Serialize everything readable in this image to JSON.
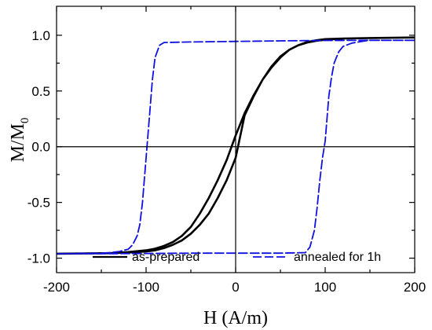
{
  "chart_data": {
    "type": "line",
    "xlabel": "H (A/m)",
    "ylabel_main": "M/M",
    "ylabel_sub": "0",
    "xlim": [
      -200,
      200
    ],
    "ylim": [
      -1.13,
      1.26
    ],
    "xticks": [
      -200,
      -100,
      0,
      100,
      200
    ],
    "xtick_labels": [
      "-200",
      "-100",
      "0",
      "100",
      "200"
    ],
    "yticks": [
      -1.0,
      -0.5,
      0.0,
      0.5,
      1.0
    ],
    "ytick_labels": [
      "-1.0",
      "-0.5",
      "0.0",
      "0.5",
      "1.0"
    ],
    "grid": false,
    "legend_position": "bottom",
    "series": [
      {
        "name": "as-prepared",
        "color": "#000000",
        "style": "solid",
        "x": [
          -200,
          -140,
          -120,
          -100,
          -90,
          -80,
          -70,
          -60,
          -50,
          -40,
          -30,
          -20,
          -10,
          0,
          10,
          20,
          30,
          40,
          50,
          60,
          70,
          80,
          90,
          100,
          120,
          150,
          200,
          150,
          120,
          100,
          90,
          80,
          70,
          60,
          50,
          40,
          30,
          20,
          10,
          0,
          -10,
          -20,
          -30,
          -40,
          -50,
          -60,
          -70,
          -80,
          -90,
          -100,
          -120,
          -140,
          -200
        ],
        "y": [
          -0.96,
          -0.955,
          -0.945,
          -0.93,
          -0.915,
          -0.89,
          -0.855,
          -0.8,
          -0.72,
          -0.6,
          -0.46,
          -0.3,
          -0.12,
          0.1,
          0.3,
          0.46,
          0.6,
          0.72,
          0.81,
          0.87,
          0.91,
          0.935,
          0.95,
          0.96,
          0.97,
          0.975,
          0.98,
          0.975,
          0.97,
          0.965,
          0.955,
          0.94,
          0.91,
          0.87,
          0.8,
          0.71,
          0.6,
          0.45,
          0.28,
          -0.1,
          -0.3,
          -0.46,
          -0.6,
          -0.7,
          -0.78,
          -0.84,
          -0.88,
          -0.91,
          -0.93,
          -0.94,
          -0.95,
          -0.955,
          -0.96
        ]
      },
      {
        "name": "annealed for 1h",
        "color": "#1010e0",
        "style": "dashed",
        "x": [
          200,
          150,
          100,
          50,
          0,
          -50,
          -80,
          -85,
          -90,
          -93,
          -96,
          -98,
          -100,
          -102,
          -104,
          -107,
          -110,
          -115,
          -120,
          -130,
          -140,
          -150,
          -200,
          -150,
          -100,
          -50,
          0,
          50,
          78,
          83,
          88,
          91,
          94,
          97,
          100,
          102,
          104,
          107,
          110,
          115,
          120,
          130,
          145,
          150,
          200
        ],
        "y": [
          0.955,
          0.955,
          0.953,
          0.95,
          0.945,
          0.94,
          0.935,
          0.91,
          0.8,
          0.6,
          0.3,
          0.1,
          -0.1,
          -0.3,
          -0.5,
          -0.7,
          -0.8,
          -0.88,
          -0.92,
          -0.94,
          -0.95,
          -0.955,
          -0.96,
          -0.96,
          -0.958,
          -0.955,
          -0.955,
          -0.955,
          -0.95,
          -0.9,
          -0.75,
          -0.55,
          -0.3,
          -0.1,
          0.05,
          0.25,
          0.45,
          0.62,
          0.75,
          0.85,
          0.9,
          0.93,
          0.95,
          0.955,
          0.955
        ]
      }
    ]
  }
}
